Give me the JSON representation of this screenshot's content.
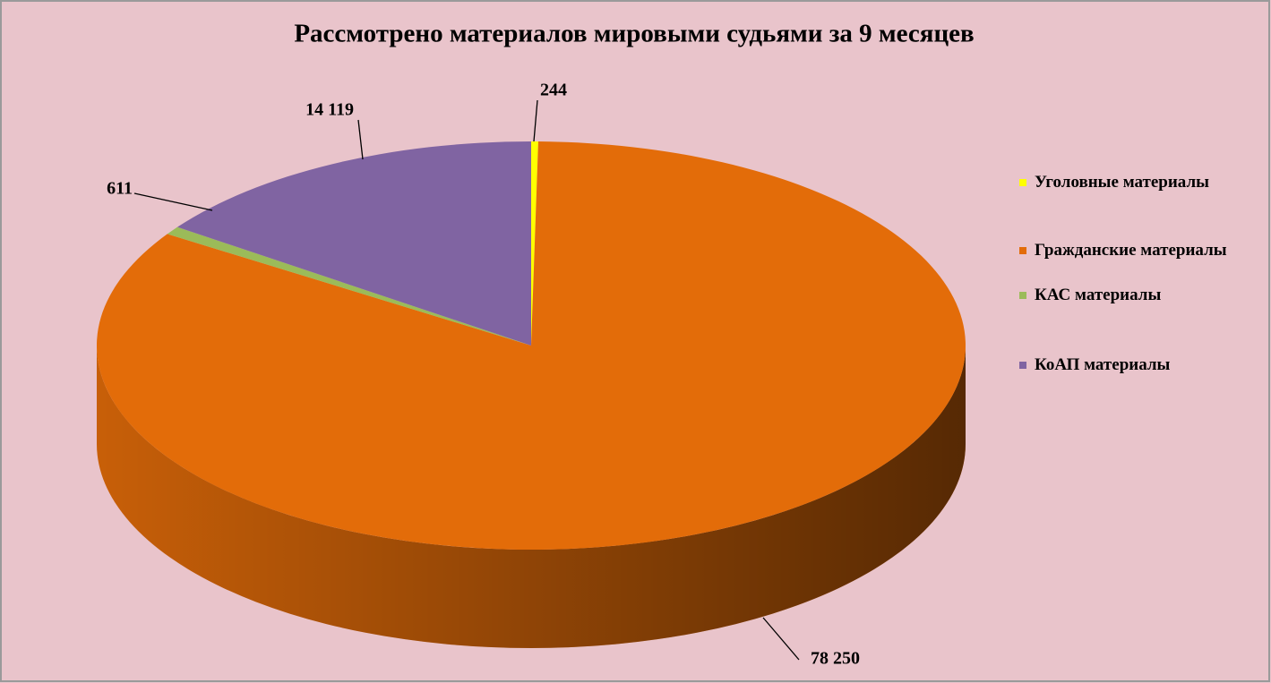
{
  "chart_data": {
    "type": "pie",
    "title": "Рассмотрено материалов мировыми судьями за 9 месяцев",
    "categories": [
      "Уголовные материалы",
      "Гражданские материалы",
      "КАС материалы",
      "КоАП материалы"
    ],
    "values": [
      244,
      78250,
      611,
      14119
    ],
    "value_labels": [
      "244",
      "78 250",
      "611",
      "14 119"
    ],
    "colors": [
      "#ffff00",
      "#e36c09",
      "#9bbb59",
      "#8064a2"
    ],
    "legend": "right"
  }
}
